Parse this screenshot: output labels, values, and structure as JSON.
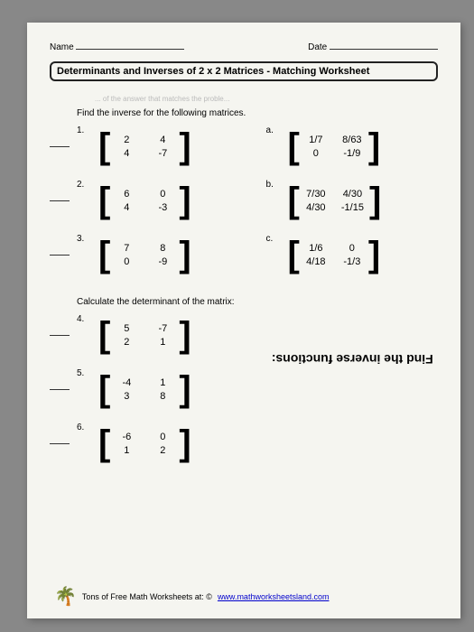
{
  "header": {
    "name_label": "Name",
    "date_label": "Date"
  },
  "title": "Determinants and Inverses of 2 x 2 Matrices - Matching Worksheet",
  "faded_text": "... of the answer that matches the proble...",
  "instruction1": "Find the inverse for the following matrices.",
  "instruction2": "Calculate the determinant of the matrix:",
  "left_problems": [
    {
      "num": "1.",
      "cells": [
        "2",
        "4",
        "4",
        "-7"
      ]
    },
    {
      "num": "2.",
      "cells": [
        "6",
        "0",
        "4",
        "-3"
      ]
    },
    {
      "num": "3.",
      "cells": [
        "7",
        "8",
        "0",
        "-9"
      ]
    }
  ],
  "right_problems": [
    {
      "num": "a.",
      "cells": [
        "1/7",
        "8/63",
        "0",
        "-1/9"
      ]
    },
    {
      "num": "b.",
      "cells": [
        "7/30",
        "4/30",
        "4/30",
        "-1/15"
      ]
    },
    {
      "num": "c.",
      "cells": [
        "1/6",
        "0",
        "4/18",
        "-1/3"
      ]
    }
  ],
  "bottom_problems": [
    {
      "num": "4.",
      "cells": [
        "5",
        "-7",
        "2",
        "1"
      ]
    },
    {
      "num": "5.",
      "cells": [
        "-4",
        "1",
        "3",
        "8"
      ]
    },
    {
      "num": "6.",
      "cells": [
        "-6",
        "0",
        "1",
        "2"
      ]
    }
  ],
  "flip_text": "Find the inverse functions:",
  "footer": {
    "text": "Tons of Free Math Worksheets at: ©",
    "link": "www.mathworksheetsland.com"
  },
  "colors": {
    "paper": "#f5f5f0",
    "bg": "#888888",
    "text": "#222222"
  }
}
